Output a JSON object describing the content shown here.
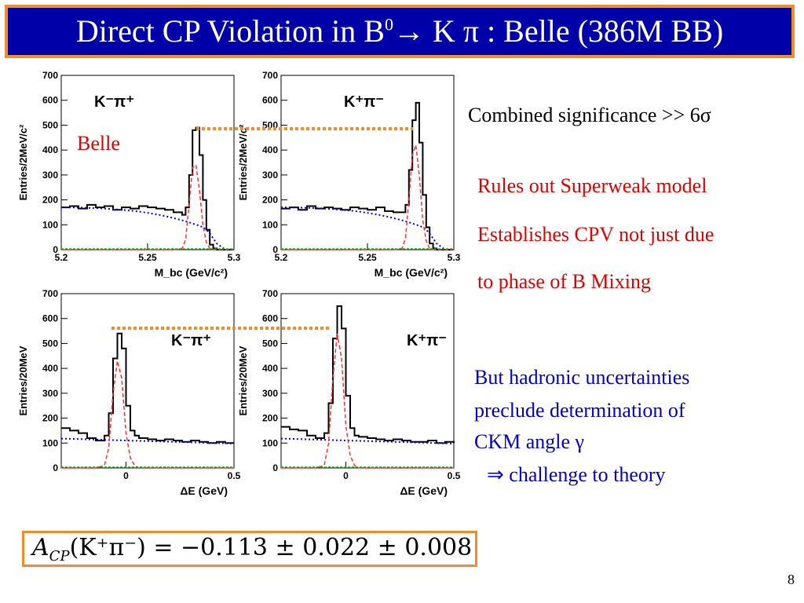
{
  "slide": {
    "title": "Direct CP Violation in B",
    "title_sup": "0",
    "title_rest": "→ K π : Belle (386M BB)",
    "belle_label": "Belle",
    "significance": "Combined significance >> 6σ",
    "point1": "Rules out Superweak model",
    "point2a": "Establishes CPV not just due",
    "point2b": "to phase of B Mixing",
    "note1": "But hadronic uncertainties",
    "note2": "preclude determination of",
    "note3": "CKM angle γ",
    "note4": "⇒ challenge to theory",
    "formula": "A_CP(K⁺π⁻) = −0.113 ± 0.022 ± 0.008",
    "formula_lhs": "A",
    "formula_sub": "CP",
    "formula_arg": "(K⁺π⁻)",
    "formula_rhs": "= −0.113 ± 0.022 ± 0.008",
    "page_number": "8",
    "colors": {
      "title_bg": "#0000a8",
      "accent": "#f28c28",
      "red_text": "#e00000",
      "blue_text": "#0000c8"
    }
  },
  "chart_data": [
    {
      "type": "line",
      "panel": "mbc-kminus-piplus",
      "label": "K⁻π⁺",
      "ylabel": "Entries/2MeV/c²",
      "xlabel": "M_bc (GeV/c²)",
      "xlim": [
        5.2,
        5.3
      ],
      "ylim": [
        0,
        700
      ],
      "xticks": [
        "5.2",
        "5.25",
        "5.3"
      ],
      "yticks": [
        "0",
        "100",
        "200",
        "300",
        "400",
        "500",
        "600",
        "700"
      ],
      "x": [
        5.2,
        5.205,
        5.21,
        5.215,
        5.22,
        5.225,
        5.23,
        5.235,
        5.24,
        5.245,
        5.25,
        5.255,
        5.26,
        5.265,
        5.27,
        5.272,
        5.274,
        5.276,
        5.278,
        5.28,
        5.282,
        5.284,
        5.286,
        5.288,
        5.29,
        5.295,
        5.3
      ],
      "series": [
        {
          "role": "data",
          "values": [
            170,
            175,
            165,
            180,
            170,
            175,
            160,
            170,
            165,
            175,
            170,
            165,
            160,
            150,
            140,
            170,
            300,
            480,
            490,
            380,
            200,
            80,
            20,
            5,
            0,
            0,
            0
          ]
        },
        {
          "role": "background",
          "values": [
            170,
            170,
            169,
            168,
            167,
            165,
            163,
            160,
            157,
            153,
            148,
            142,
            135,
            127,
            118,
            114,
            110,
            105,
            101,
            96,
            90,
            80,
            65,
            45,
            25,
            0,
            0
          ]
        },
        {
          "role": "signal",
          "values": [
            0,
            0,
            0,
            0,
            0,
            0,
            0,
            0,
            0,
            0,
            0,
            0,
            0,
            0,
            5,
            40,
            180,
            330,
            340,
            240,
            100,
            30,
            5,
            0,
            0,
            0,
            0
          ]
        }
      ]
    },
    {
      "type": "line",
      "panel": "mbc-kplus-piminus",
      "label": "K⁺π⁻",
      "ylabel": "Entries/2MeV/c²",
      "xlabel": "M_bc (GeV/c²)",
      "xlim": [
        5.2,
        5.3
      ],
      "ylim": [
        0,
        700
      ],
      "xticks": [
        "5.2",
        "5.25",
        "5.3"
      ],
      "yticks": [
        "0",
        "100",
        "200",
        "300",
        "400",
        "500",
        "600",
        "700"
      ],
      "x": [
        5.2,
        5.205,
        5.21,
        5.215,
        5.22,
        5.225,
        5.23,
        5.235,
        5.24,
        5.245,
        5.25,
        5.255,
        5.26,
        5.265,
        5.27,
        5.272,
        5.274,
        5.276,
        5.278,
        5.28,
        5.282,
        5.284,
        5.286,
        5.288,
        5.29,
        5.295,
        5.3
      ],
      "series": [
        {
          "role": "data",
          "values": [
            165,
            170,
            160,
            175,
            165,
            170,
            165,
            160,
            170,
            165,
            160,
            170,
            155,
            150,
            150,
            180,
            320,
            520,
            590,
            430,
            220,
            90,
            25,
            5,
            0,
            0,
            0
          ]
        },
        {
          "role": "background",
          "values": [
            170,
            170,
            169,
            168,
            167,
            165,
            163,
            160,
            157,
            153,
            148,
            142,
            135,
            127,
            118,
            114,
            110,
            105,
            101,
            96,
            90,
            80,
            65,
            45,
            25,
            0,
            0
          ]
        },
        {
          "role": "signal",
          "values": [
            0,
            0,
            0,
            0,
            0,
            0,
            0,
            0,
            0,
            0,
            0,
            0,
            0,
            0,
            5,
            45,
            200,
            380,
            420,
            300,
            120,
            35,
            5,
            0,
            0,
            0,
            0
          ]
        }
      ]
    },
    {
      "type": "line",
      "panel": "de-kminus-piplus",
      "label": "K⁻π⁺",
      "ylabel": "Entries/20MeV",
      "xlabel": "ΔE (GeV)",
      "xlim": [
        -0.3,
        0.5
      ],
      "ylim": [
        0,
        700
      ],
      "xticks": [
        "0",
        "0.5"
      ],
      "yticks": [
        "0",
        "100",
        "200",
        "300",
        "400",
        "500",
        "600",
        "700"
      ],
      "x": [
        -0.3,
        -0.26,
        -0.22,
        -0.18,
        -0.14,
        -0.1,
        -0.08,
        -0.06,
        -0.04,
        -0.02,
        0.0,
        0.02,
        0.04,
        0.06,
        0.1,
        0.14,
        0.18,
        0.22,
        0.26,
        0.3,
        0.34,
        0.38,
        0.42,
        0.46,
        0.5
      ],
      "series": [
        {
          "role": "data",
          "values": [
            160,
            150,
            140,
            120,
            110,
            130,
            220,
            440,
            540,
            480,
            250,
            150,
            130,
            120,
            115,
            110,
            115,
            110,
            105,
            110,
            105,
            100,
            105,
            100,
            100
          ]
        },
        {
          "role": "background",
          "values": [
            118,
            117,
            116,
            115,
            114,
            113,
            112,
            112,
            111,
            111,
            110,
            110,
            109,
            109,
            108,
            107,
            106,
            105,
            104,
            103,
            102,
            101,
            100,
            99,
            98
          ]
        },
        {
          "role": "signal",
          "values": [
            0,
            0,
            0,
            0,
            0,
            10,
            80,
            300,
            430,
            360,
            140,
            40,
            10,
            0,
            0,
            0,
            0,
            0,
            0,
            0,
            0,
            0,
            0,
            0,
            0
          ]
        }
      ]
    },
    {
      "type": "line",
      "panel": "de-kplus-piminus",
      "label": "K⁺π⁻",
      "ylabel": "Entries/20MeV",
      "xlabel": "ΔE (GeV)",
      "xlim": [
        -0.3,
        0.5
      ],
      "ylim": [
        0,
        700
      ],
      "xticks": [
        "0",
        "0.5"
      ],
      "yticks": [
        "0",
        "100",
        "200",
        "300",
        "400",
        "500",
        "600",
        "700"
      ],
      "x": [
        -0.3,
        -0.26,
        -0.22,
        -0.18,
        -0.14,
        -0.1,
        -0.08,
        -0.06,
        -0.04,
        -0.02,
        0.0,
        0.02,
        0.04,
        0.06,
        0.1,
        0.14,
        0.18,
        0.22,
        0.26,
        0.3,
        0.34,
        0.38,
        0.42,
        0.46,
        0.5
      ],
      "series": [
        {
          "role": "data",
          "values": [
            165,
            155,
            150,
            130,
            120,
            140,
            260,
            520,
            650,
            560,
            290,
            160,
            130,
            125,
            120,
            115,
            110,
            115,
            110,
            105,
            105,
            110,
            100,
            105,
            100
          ]
        },
        {
          "role": "background",
          "values": [
            118,
            117,
            116,
            115,
            114,
            113,
            112,
            112,
            111,
            111,
            110,
            110,
            109,
            109,
            108,
            107,
            106,
            105,
            104,
            103,
            102,
            101,
            100,
            99,
            98
          ]
        },
        {
          "role": "signal",
          "values": [
            0,
            0,
            0,
            0,
            0,
            10,
            100,
            360,
            540,
            440,
            170,
            50,
            10,
            0,
            0,
            0,
            0,
            0,
            0,
            0,
            0,
            0,
            0,
            0,
            0
          ]
        }
      ]
    }
  ]
}
